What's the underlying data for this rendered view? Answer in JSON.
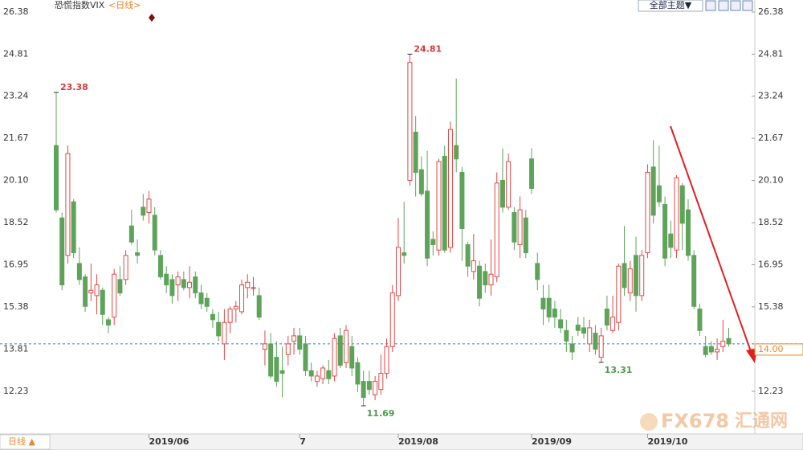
{
  "chart_data": {
    "type": "candlestick",
    "title": "恐慌指数VIX",
    "subtitle": "<日线>",
    "categories": [
      null,
      null,
      null,
      null,
      null,
      null,
      null,
      null,
      null,
      null,
      null,
      null,
      null,
      null,
      null,
      null,
      "2019/06",
      null,
      null,
      null,
      null,
      null,
      null,
      null,
      null,
      null,
      null,
      null,
      null,
      null,
      null,
      null,
      null,
      null,
      null,
      null,
      null,
      null,
      null,
      null,
      null,
      null,
      "7",
      null,
      null,
      null,
      null,
      null,
      null,
      null,
      null,
      null,
      null,
      null,
      null,
      null,
      null,
      null,
      null,
      "2019/08",
      null,
      null,
      null,
      null,
      null,
      null,
      null,
      null,
      null,
      null,
      null,
      null,
      null,
      null,
      null,
      null,
      null,
      null,
      null,
      null,
      null,
      null,
      "2019/09",
      null,
      null,
      null,
      null,
      null,
      null,
      null,
      null,
      null,
      null,
      null,
      null,
      null,
      null,
      null,
      null,
      null,
      null,
      null,
      "2019/10",
      null,
      null,
      null,
      null,
      null,
      null,
      null,
      null,
      null,
      null,
      null,
      null,
      null,
      null
    ],
    "open": [
      21.4,
      18.7,
      17.3,
      19.3,
      17.0,
      16.5,
      15.9,
      15.8,
      16.0,
      14.9,
      15.0,
      16.4,
      16.4,
      18.4,
      17.4,
      19.1,
      18.9,
      18.8,
      17.3,
      16.6,
      16.4,
      16.2,
      16.4,
      16.1,
      16.5,
      15.9,
      15.7,
      15.1,
      14.8,
      14.0,
      14.8,
      15.3,
      15.2,
      16.1,
      16.1,
      15.8,
      13.8,
      14.0,
      13.5,
      13.0,
      13.6,
      14.1,
      14.3,
      14.0,
      13.0,
      12.6,
      12.7,
      13.0,
      12.8,
      14.3,
      13.3,
      13.9,
      13.3,
      12.6,
      12.6,
      12.1,
      12.3,
      12.9,
      13.9,
      15.8,
      17.4,
      20.1,
      21.9,
      20.5,
      19.7,
      17.9,
      17.5,
      21.0,
      17.6,
      21.4,
      20.4,
      17.7,
      16.7,
      16.9,
      16.7,
      16.2,
      16.5,
      20.1,
      19.1,
      18.9,
      17.7,
      18.7,
      20.9,
      17.0,
      15.7,
      15.7,
      15.3,
      14.9,
      14.5,
      14.0,
      14.7,
      14.6,
      14.0,
      14.4,
      13.5,
      15.3,
      14.5,
      14.8,
      17.0,
      15.9,
      17.3,
      15.8,
      17.4,
      20.6,
      19.9,
      19.2,
      18.1,
      17.5,
      19.9,
      19.0,
      17.3,
      15.3,
      13.9,
      13.9,
      13.7,
      13.9,
      14.2
    ],
    "high": [
      23.38,
      18.9,
      21.4,
      19.4,
      17.6,
      16.6,
      17.0,
      16.6,
      16.1,
      15.0,
      16.8,
      16.9,
      17.5,
      19.0,
      17.9,
      19.6,
      19.7,
      19.1,
      17.5,
      16.9,
      16.6,
      16.7,
      16.7,
      16.9,
      16.7,
      16.2,
      15.9,
      15.3,
      15.2,
      15.3,
      15.4,
      15.6,
      16.4,
      16.6,
      16.5,
      16.1,
      14.5,
      14.4,
      14.1,
      13.9,
      14.3,
      14.6,
      14.6,
      14.3,
      13.3,
      13.0,
      13.2,
      13.4,
      14.4,
      14.6,
      14.7,
      14.3,
      13.5,
      13.0,
      13.0,
      12.8,
      13.6,
      14.2,
      16.2,
      18.7,
      19.3,
      24.81,
      22.5,
      21.0,
      21.2,
      18.2,
      20.9,
      21.4,
      22.3,
      23.9,
      20.6,
      17.8,
      18.1,
      17.1,
      17.0,
      17.9,
      20.4,
      21.3,
      21.1,
      19.1,
      19.5,
      19.0,
      21.3,
      17.4,
      16.2,
      16.2,
      15.6,
      15.3,
      14.9,
      14.3,
      15.0,
      15.0,
      14.9,
      14.7,
      14.6,
      15.8,
      15.8,
      17.0,
      18.4,
      17.1,
      18.0,
      17.5,
      20.7,
      21.6,
      21.4,
      19.5,
      18.6,
      20.3,
      20.0,
      19.4,
      17.5,
      15.5,
      14.3,
      14.1,
      14.2,
      14.9,
      14.6
    ],
    "low": [
      18.9,
      16.0,
      17.0,
      17.2,
      16.2,
      15.2,
      15.6,
      15.1,
      14.7,
      14.4,
      14.7,
      15.8,
      16.2,
      17.7,
      17.0,
      18.6,
      18.5,
      17.3,
      16.4,
      15.9,
      15.5,
      15.6,
      16.0,
      15.7,
      15.7,
      15.3,
      15.2,
      14.6,
      14.1,
      13.4,
      14.4,
      14.8,
      15.1,
      15.7,
      15.8,
      14.9,
      13.2,
      12.7,
      12.4,
      12.0,
      13.2,
      13.6,
      13.6,
      12.8,
      12.6,
      12.4,
      12.5,
      12.5,
      12.6,
      13.1,
      13.1,
      12.8,
      12.2,
      11.69,
      12.1,
      11.9,
      12.1,
      12.7,
      13.7,
      15.6,
      17.0,
      19.9,
      19.5,
      19.5,
      16.9,
      17.3,
      17.3,
      17.4,
      17.4,
      20.4,
      17.1,
      16.5,
      16.4,
      15.4,
      15.9,
      15.8,
      16.3,
      18.9,
      19.0,
      17.5,
      17.2,
      17.2,
      19.6,
      16.0,
      14.7,
      14.8,
      14.6,
      14.4,
      13.7,
      13.4,
      14.3,
      14.2,
      13.7,
      13.6,
      13.31,
      14.5,
      14.4,
      14.5,
      15.8,
      15.6,
      15.2,
      15.6,
      17.2,
      18.5,
      19.1,
      16.9,
      17.2,
      17.2,
      17.5,
      17.1,
      15.3,
      14.3,
      13.5,
      13.6,
      13.4,
      13.7,
      13.9
    ],
    "close": [
      19.0,
      16.2,
      21.1,
      17.4,
      16.4,
      15.4,
      16.0,
      16.2,
      15.1,
      14.7,
      16.6,
      15.9,
      17.3,
      17.8,
      17.3,
      18.8,
      19.4,
      17.5,
      16.5,
      16.2,
      15.8,
      16.5,
      16.1,
      16.3,
      15.9,
      15.5,
      15.4,
      14.9,
      14.3,
      14.8,
      15.3,
      15.4,
      16.2,
      16.3,
      16.1,
      15.0,
      14.0,
      12.8,
      12.6,
      12.9,
      14.0,
      14.3,
      13.8,
      13.0,
      12.8,
      12.8,
      13.1,
      12.7,
      14.2,
      13.2,
      14.5,
      13.1,
      12.5,
      12.0,
      12.3,
      12.6,
      12.9,
      13.9,
      15.9,
      17.6,
      17.3,
      24.5,
      20.4,
      19.6,
      17.2,
      17.7,
      20.8,
      17.5,
      22.0,
      20.9,
      18.3,
      16.9,
      17.1,
      15.7,
      16.2,
      16.6,
      20.0,
      19.1,
      20.8,
      17.8,
      19.0,
      17.4,
      19.8,
      16.4,
      15.3,
      15.0,
      15.0,
      14.6,
      14.1,
      13.7,
      14.5,
      14.4,
      14.6,
      13.8,
      14.3,
      14.7,
      15.0,
      16.9,
      16.1,
      16.8,
      15.8,
      17.3,
      20.4,
      18.8,
      19.3,
      17.2,
      17.6,
      20.2,
      18.5,
      17.3,
      15.4,
      14.5,
      13.6,
      13.7,
      13.8,
      14.1,
      14.0
    ],
    "up_color": "#e04848",
    "down_color": "#5ea35a",
    "ylim": [
      10.64,
      26.83
    ],
    "yticks": [
      12.23,
      13.81,
      15.38,
      16.95,
      18.52,
      {
        "value": 20.1,
        "label": "20.10"
      },
      21.67,
      23.24,
      24.81,
      26.38
    ],
    "annotations": [
      {
        "type": "high",
        "value": 23.38
      },
      {
        "type": "high",
        "value": 24.81
      },
      {
        "type": "low",
        "value": 11.69
      },
      {
        "type": "low",
        "value": 13.31
      }
    ],
    "last_price": {
      "value": 14,
      "label": "14.00"
    }
  },
  "ui": {
    "theme_button": "全部主题▼",
    "period_button": "日线 ▲",
    "watermark": "FX678",
    "watermark_cn": "汇通网"
  }
}
